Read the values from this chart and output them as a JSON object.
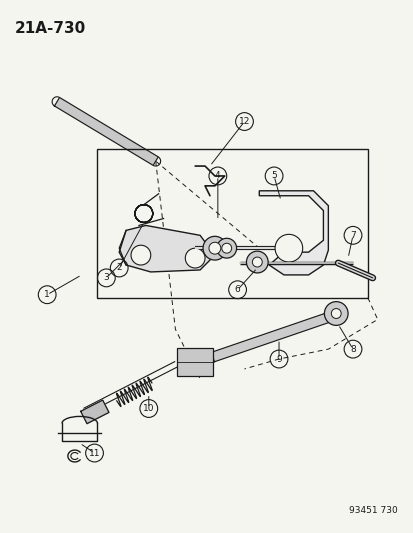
{
  "title": "21A-730",
  "watermark": "93451 730",
  "bg_color": "#f5f5f0",
  "fg_color": "#1a1a1a",
  "title_fontsize": 11,
  "wm_fontsize": 6.5
}
